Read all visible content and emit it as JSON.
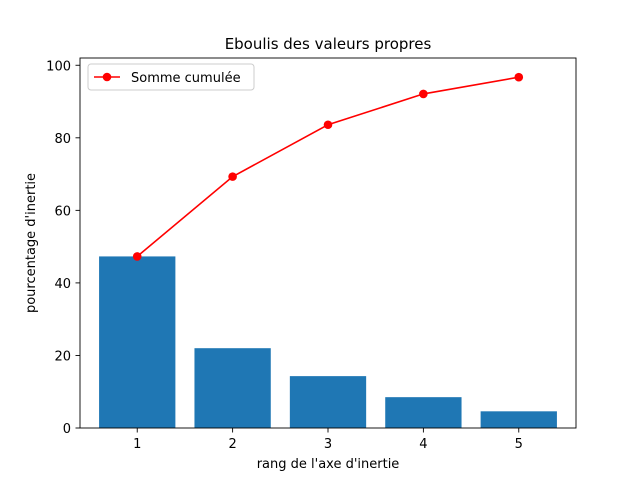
{
  "chart_data": {
    "type": "bar",
    "title": "Eboulis des valeurs propres",
    "xlabel": "rang de l'axe d'inertie",
    "ylabel": "pourcentage d'inertie",
    "categories": [
      "1",
      "2",
      "3",
      "4",
      "5"
    ],
    "x": [
      1,
      2,
      3,
      4,
      5
    ],
    "ylim": [
      0,
      102
    ],
    "xlim": [
      0.4,
      5.6
    ],
    "yticks": [
      0,
      20,
      40,
      60,
      80,
      100
    ],
    "series": [
      {
        "type": "bar",
        "values": [
          47.3,
          22.0,
          14.3,
          8.5,
          4.6
        ],
        "color": "#1f77b4"
      },
      {
        "name": "Somme cumulée",
        "type": "line",
        "marker": "circle",
        "values": [
          47.3,
          69.3,
          83.6,
          92.1,
          96.7
        ],
        "color": "#ff0000"
      }
    ],
    "legend": {
      "position": "top-left",
      "entries": [
        "Somme cumulée"
      ]
    },
    "grid": false
  }
}
